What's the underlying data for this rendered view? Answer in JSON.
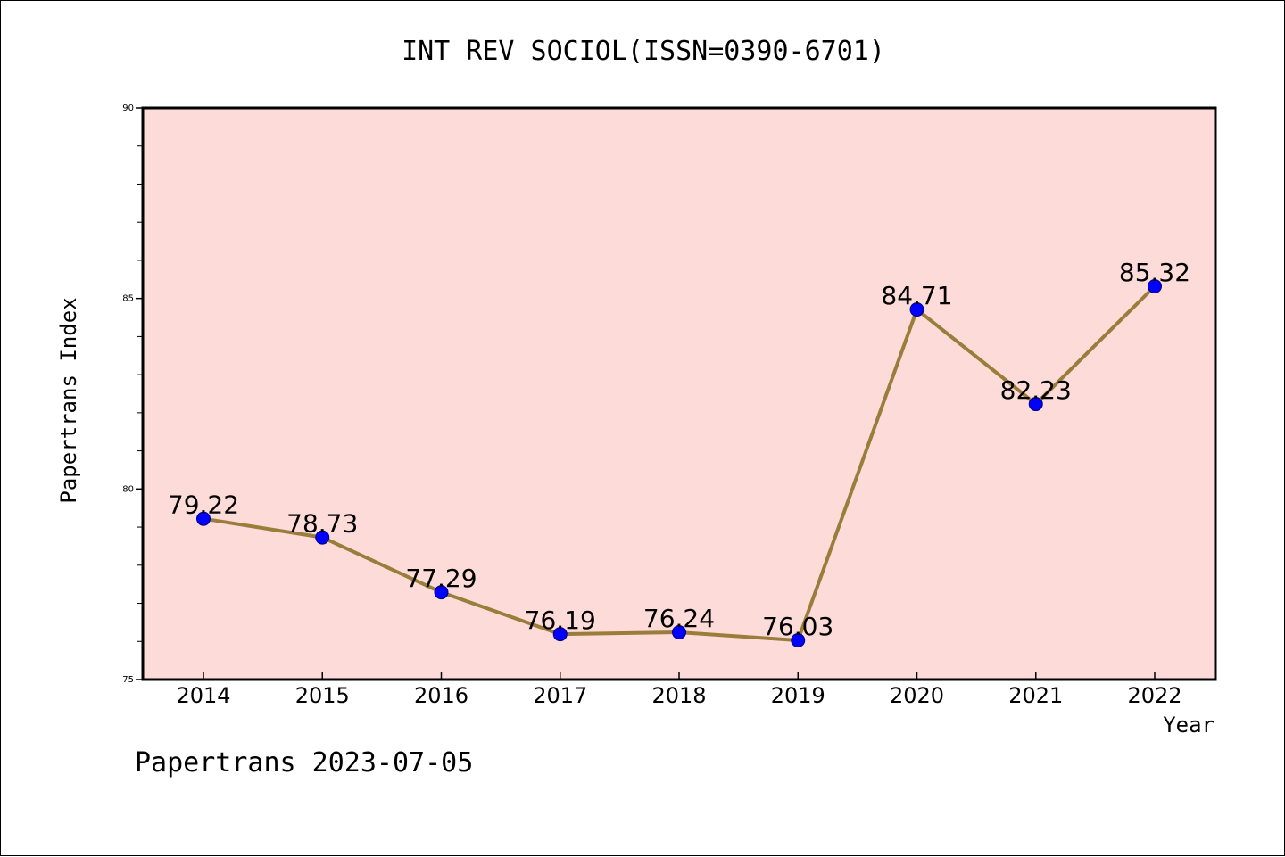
{
  "chart_data": {
    "type": "line",
    "title": "INT REV SOCIOL(ISSN=0390-6701)",
    "xlabel": "Year",
    "ylabel": "Papertrans Index",
    "footer": "Papertrans 2023-07-05",
    "categories": [
      "2014",
      "2015",
      "2016",
      "2017",
      "2018",
      "2019",
      "2020",
      "2021",
      "2022"
    ],
    "series": [
      {
        "values": [
          79.22,
          78.73,
          77.29,
          76.19,
          76.24,
          76.03,
          84.71,
          82.23,
          85.32
        ],
        "labels": [
          "79.22",
          "78.73",
          "77.29",
          "76.19",
          "76.24",
          "76.03",
          "84.71",
          "82.23",
          "85.32"
        ]
      }
    ],
    "ylim": [
      75,
      90
    ],
    "yticks": [
      75,
      80,
      85,
      90
    ],
    "ytick_labels": [
      "75",
      "80",
      "85",
      "90"
    ],
    "grid": false,
    "colors": {
      "plot_background": "#fddbd8",
      "line": "#9a7d3a",
      "marker": "#0000ff",
      "axes": "#000000"
    }
  }
}
